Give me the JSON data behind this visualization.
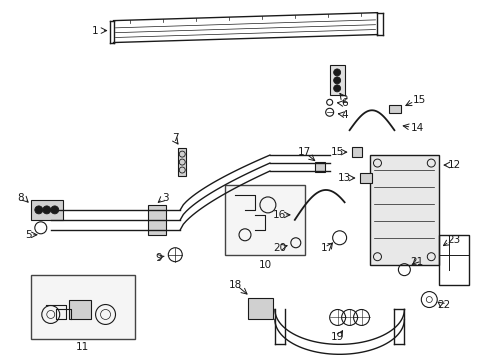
{
  "background_color": "#ffffff",
  "line_color": "#1a1a1a",
  "fig_width": 4.9,
  "fig_height": 3.6,
  "dpi": 100,
  "label_fontsize": 7.5
}
